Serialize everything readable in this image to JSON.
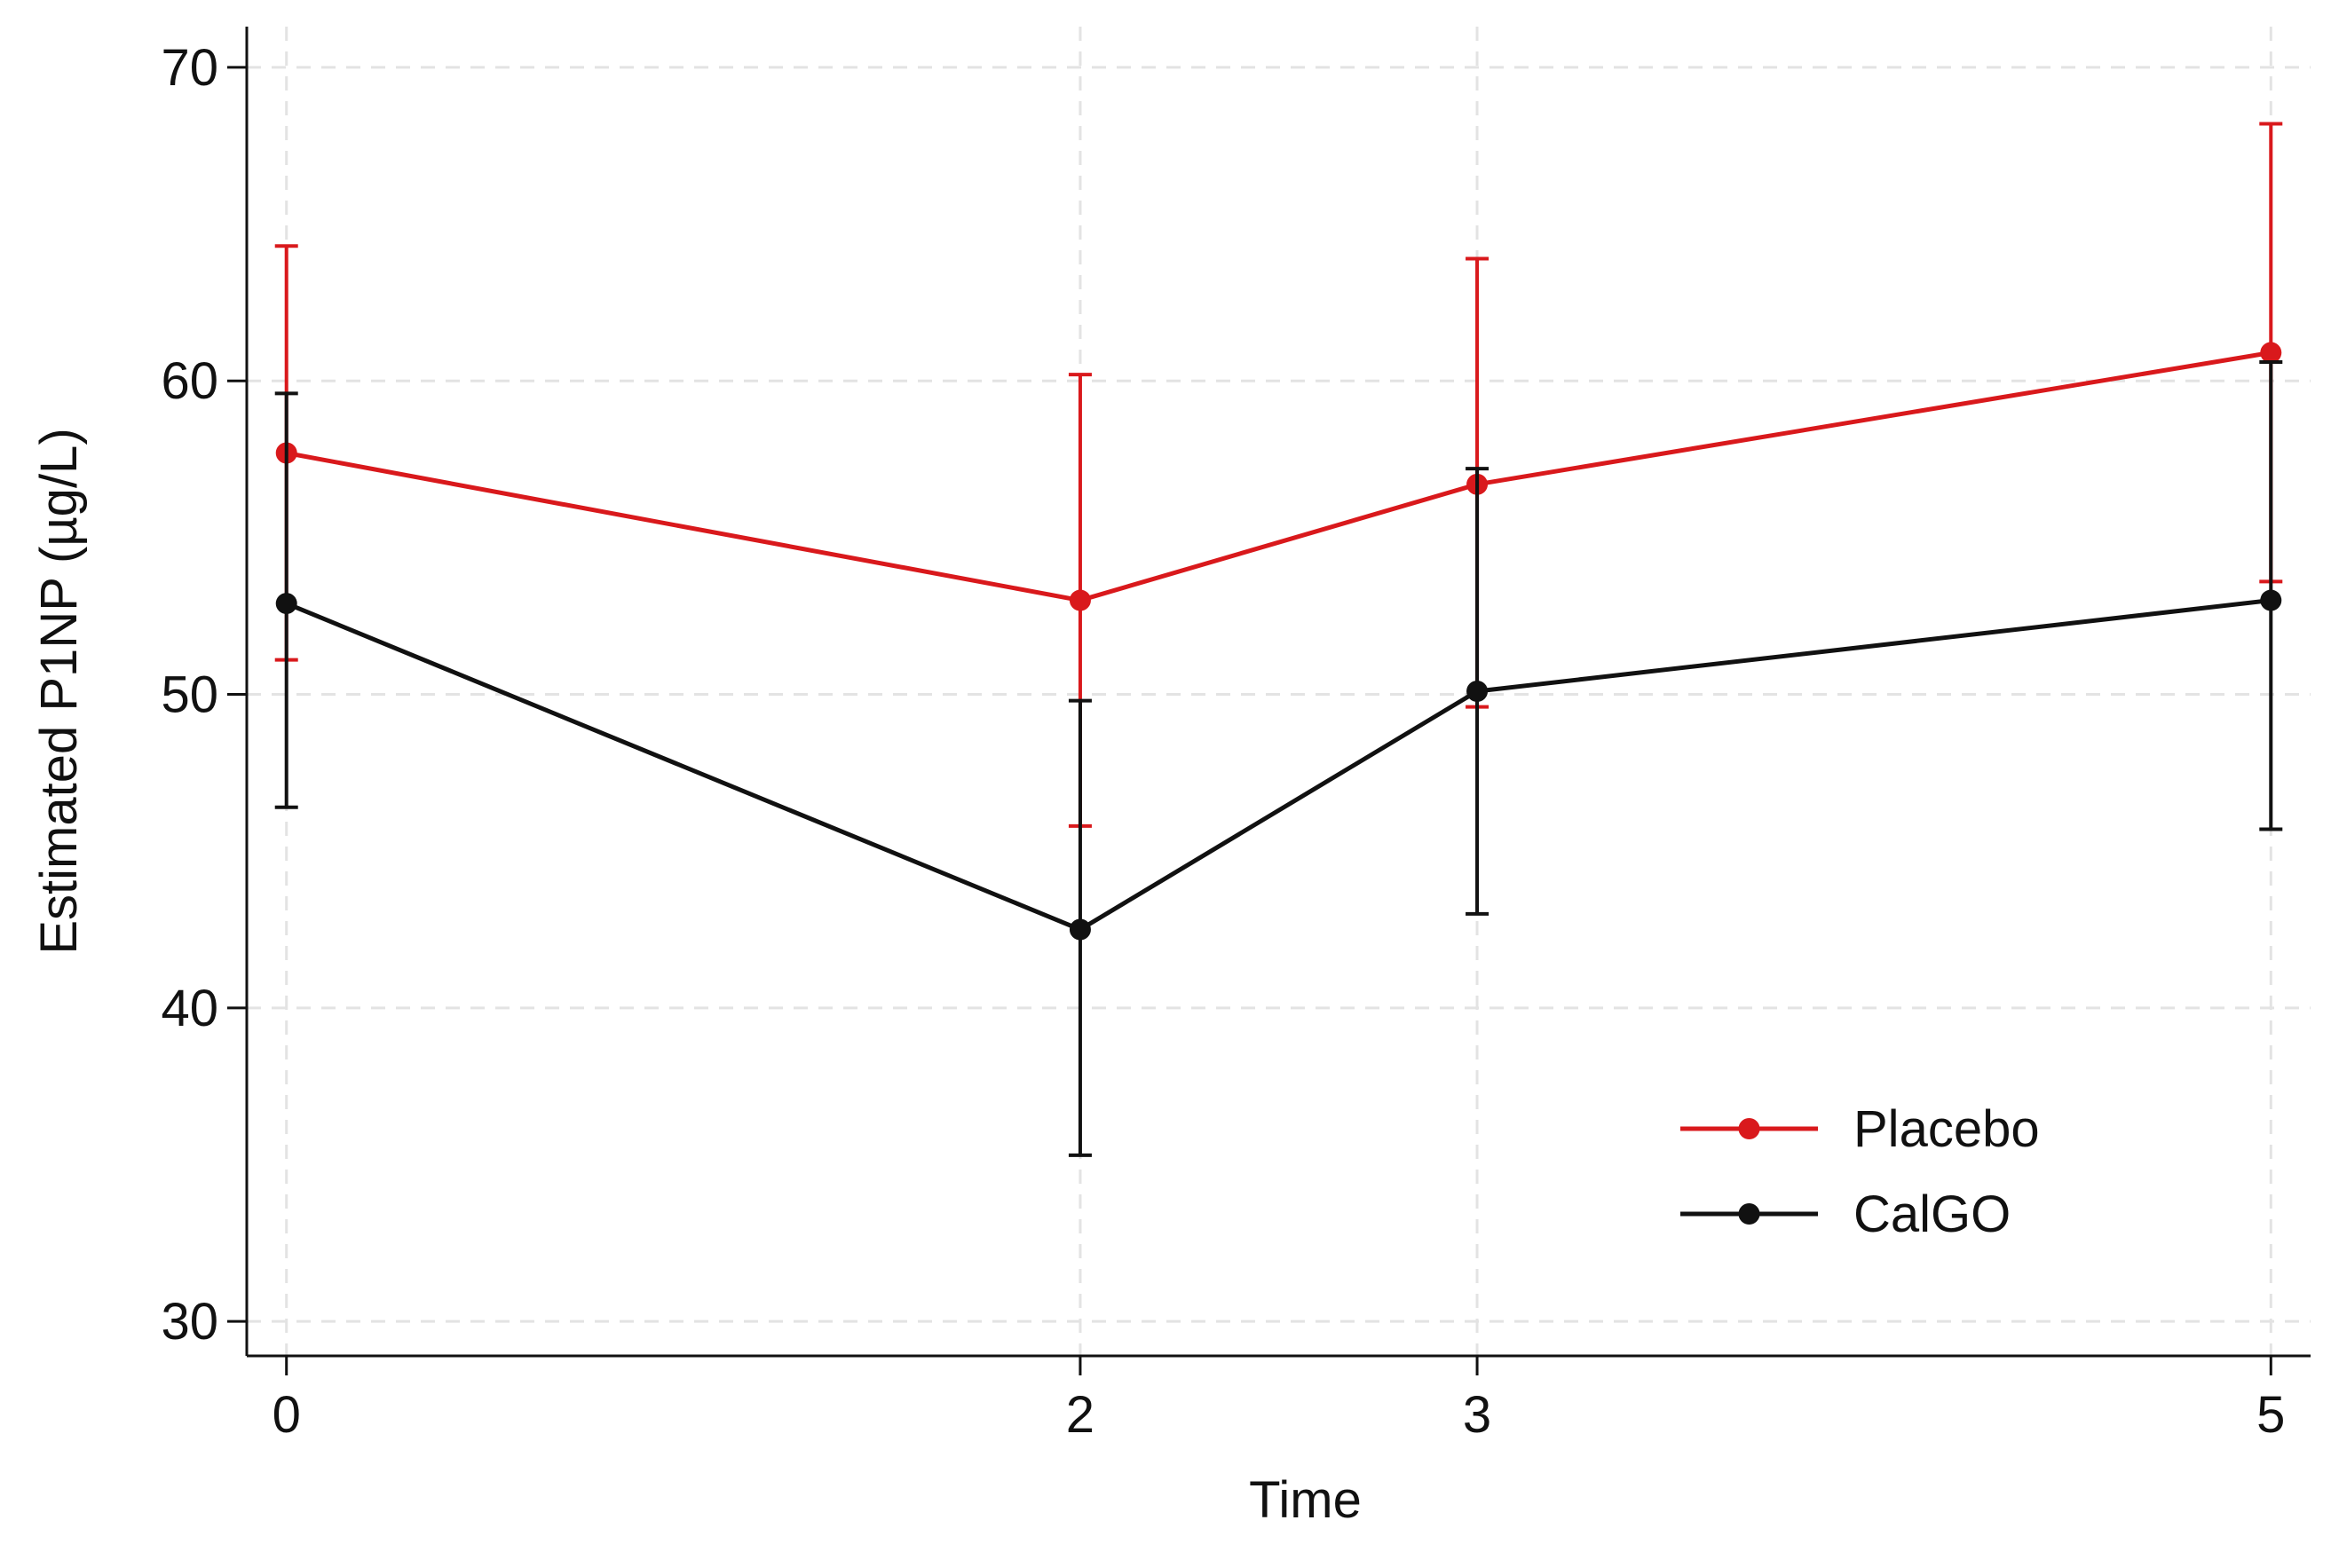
{
  "chart_data": {
    "type": "line",
    "xlabel": "Time",
    "ylabel": "Estimated  P1NP (µg/L)",
    "x": [
      0,
      2,
      3,
      5
    ],
    "x_ticks": [
      "0",
      "2",
      "3",
      "5"
    ],
    "xlim": [
      -0.1,
      5.1
    ],
    "ylim": [
      28.9,
      71.3
    ],
    "y_ticks": [
      "30",
      "40",
      "50",
      "60",
      "70"
    ],
    "y_tick_values": [
      30,
      40,
      50,
      60,
      70
    ],
    "grid": true,
    "legend_position": "bottom-right",
    "series": [
      {
        "name": "Placebo",
        "color": "#d9191c",
        "values": [
          57.7,
          53.0,
          56.7,
          60.9
        ],
        "ci_low": [
          51.1,
          45.8,
          49.6,
          53.6
        ],
        "ci_high": [
          64.3,
          60.2,
          63.9,
          68.2
        ]
      },
      {
        "name": "CalGO",
        "color": "#111111",
        "values": [
          52.9,
          42.5,
          50.1,
          53.0
        ],
        "ci_low": [
          46.4,
          35.3,
          43.0,
          45.7
        ],
        "ci_high": [
          59.6,
          49.8,
          57.2,
          60.6
        ]
      }
    ]
  }
}
